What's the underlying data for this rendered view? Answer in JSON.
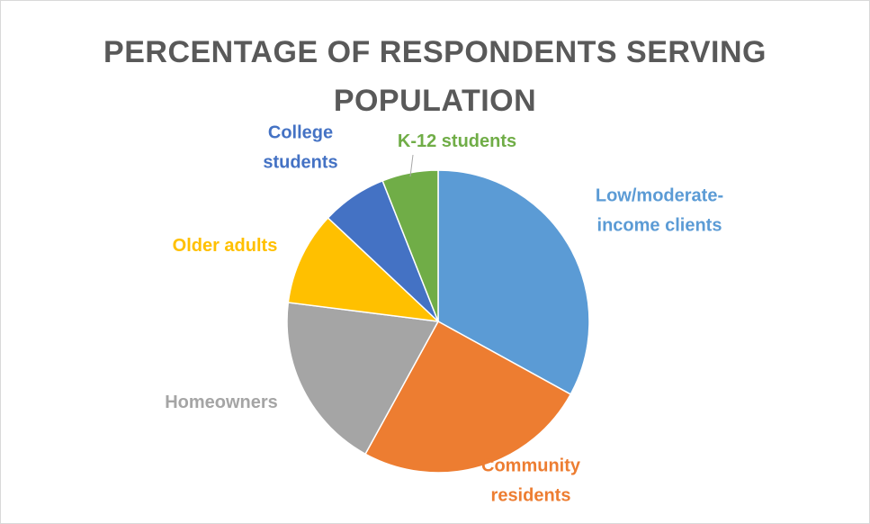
{
  "chart_data": {
    "type": "pie",
    "title_lines": [
      "PERCENTAGE OF RESPONDENTS SERVING",
      "POPULATION"
    ],
    "slices": [
      {
        "label_lines": [
          "Low/moderate-",
          "income clients"
        ],
        "value": 33,
        "color": "#5b9bd5"
      },
      {
        "label_lines": [
          "Community",
          "residents"
        ],
        "value": 25,
        "color": "#ed7d31"
      },
      {
        "label_lines": [
          "Homeowners"
        ],
        "value": 19,
        "color": "#a5a5a5"
      },
      {
        "label_lines": [
          "Older adults"
        ],
        "value": 10,
        "color": "#ffc000"
      },
      {
        "label_lines": [
          "College",
          "students"
        ],
        "value": 7,
        "color": "#4472c4"
      },
      {
        "label_lines": [
          "K-12 students"
        ],
        "value": 6,
        "color": "#70ad47"
      }
    ],
    "start_angle": "12 o'clock",
    "direction": "clockwise",
    "legend": "none"
  }
}
